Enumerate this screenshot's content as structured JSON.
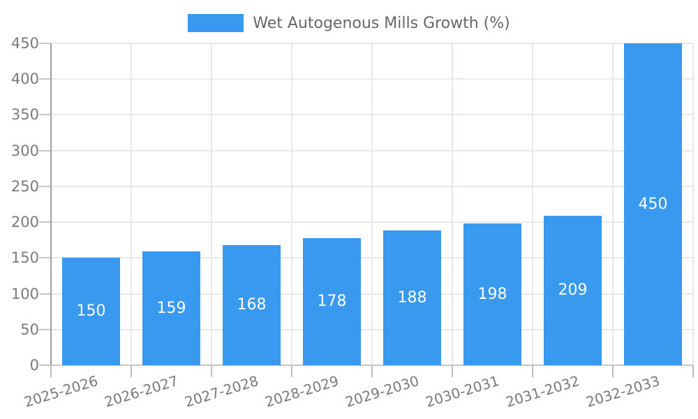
{
  "legend": {
    "label": "Wet Autogenous Mills Growth (%)"
  },
  "chart_data": {
    "type": "bar",
    "title": "",
    "categories": [
      "2025-2026",
      "2026-2027",
      "2027-2028",
      "2028-2029",
      "2029-2030",
      "2030-2031",
      "2031-2032",
      "2032-2033"
    ],
    "series": [
      {
        "name": "Wet Autogenous Mills Growth (%)",
        "values": [
          150,
          159,
          168,
          178,
          188,
          198,
          209,
          450
        ]
      }
    ],
    "values": [
      150,
      159,
      168,
      178,
      188,
      198,
      209,
      450
    ],
    "value_labels": [
      150,
      159,
      168,
      178,
      188,
      198,
      209,
      450
    ],
    "xlabel": "",
    "ylabel": "",
    "ylim": [
      0,
      450
    ],
    "yticks": [
      0,
      50,
      100,
      150,
      200,
      250,
      300,
      350,
      400,
      450
    ],
    "grid": true,
    "legend_position": "top",
    "colors": {
      "bar": "#3999ee",
      "grid": "#e8e8e8",
      "y_axis_line": "#9e9e9e",
      "x_axis_line": "#c6c6c6",
      "tick": "#c6c6c6",
      "axis_text": "#7a7a7a",
      "legend_text": "#666666",
      "value_text": "#ffffff"
    }
  }
}
